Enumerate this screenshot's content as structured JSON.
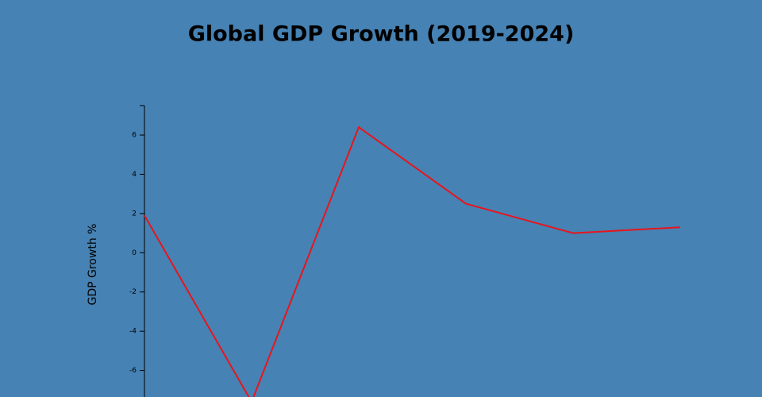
{
  "chart_data": {
    "type": "line",
    "title": "Global GDP Growth (2019-2024)",
    "y_label": "GDP Growth %",
    "categories": [
      null,
      null,
      null,
      null,
      null,
      null
    ],
    "values": [
      1.9,
      -7.6,
      6.4,
      2.5,
      1.0,
      1.3
    ],
    "color": "#e8151b",
    "ylim": [
      -8,
      7.5
    ],
    "yticks": [
      -6,
      -4,
      -2,
      0,
      2,
      4,
      6
    ],
    "grid": false
  }
}
